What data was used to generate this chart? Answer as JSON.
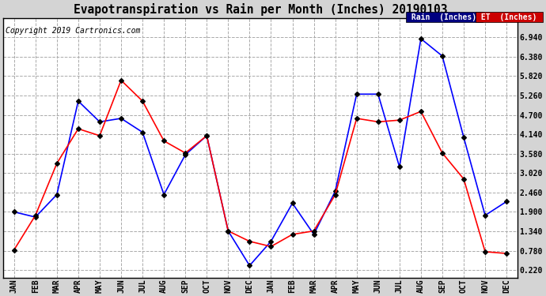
{
  "title": "Evapotranspiration vs Rain per Month (Inches) 20190103",
  "copyright": "Copyright 2019 Cartronics.com",
  "months": [
    "JAN",
    "FEB",
    "MAR",
    "APR",
    "MAY",
    "JUN",
    "JUL",
    "AUG",
    "SEP",
    "OCT",
    "NOV",
    "DEC",
    "JAN",
    "FEB",
    "MAR",
    "APR",
    "MAY",
    "JUN",
    "JUL",
    "AUG",
    "SEP",
    "OCT",
    "NOV",
    "DEC"
  ],
  "rain": [
    1.9,
    1.75,
    2.4,
    5.1,
    4.5,
    4.6,
    4.2,
    2.4,
    3.55,
    4.1,
    1.35,
    0.35,
    1.05,
    2.15,
    1.25,
    2.5,
    5.3,
    5.3,
    3.2,
    6.9,
    6.4,
    4.05,
    1.8,
    2.2
  ],
  "et": [
    0.8,
    1.8,
    3.3,
    4.3,
    4.1,
    5.7,
    5.1,
    3.95,
    3.6,
    4.1,
    1.35,
    1.05,
    0.9,
    1.25,
    1.35,
    2.4,
    4.6,
    4.5,
    4.55,
    4.8,
    3.6,
    2.85,
    0.75,
    0.7
  ],
  "rain_color": "#0000ff",
  "et_color": "#ff0000",
  "bg_color": "#d4d4d4",
  "plot_bg": "#ffffff",
  "yticks": [
    0.22,
    0.78,
    1.34,
    1.9,
    2.46,
    3.02,
    3.58,
    4.14,
    4.7,
    5.26,
    5.82,
    6.38,
    6.94
  ],
  "ylim_min": 0.0,
  "ylim_max": 7.5,
  "legend_rain_bg": "#000080",
  "legend_et_bg": "#cc0000"
}
